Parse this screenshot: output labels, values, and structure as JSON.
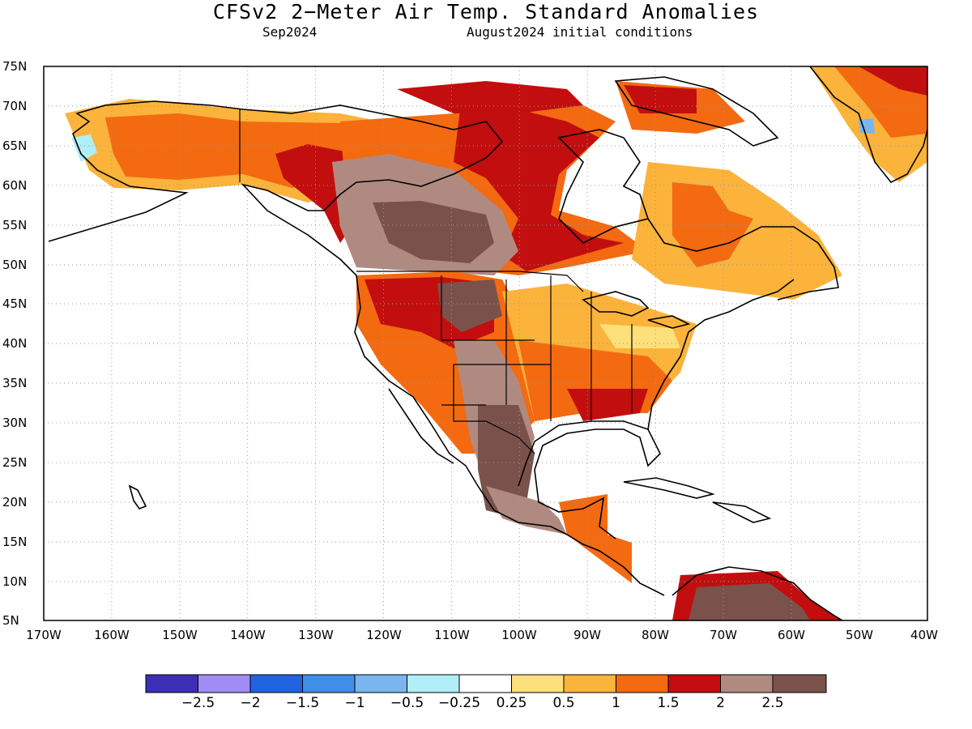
{
  "title": "CFSv2 2−Meter Air Temp. Standard Anomalies",
  "subtitle_left": "Sep2024",
  "subtitle_right": "August2024 initial conditions",
  "map": {
    "lon_range": [
      -170,
      -40
    ],
    "lat_range": [
      5,
      75
    ],
    "lon_labels": [
      "170W",
      "160W",
      "150W",
      "140W",
      "130W",
      "120W",
      "110W",
      "100W",
      "90W",
      "80W",
      "70W",
      "60W",
      "50W",
      "40W"
    ],
    "lat_labels": [
      "5N",
      "10N",
      "15N",
      "20N",
      "25N",
      "30N",
      "35N",
      "40N",
      "45N",
      "50N",
      "55N",
      "60N",
      "65N",
      "70N",
      "75N"
    ],
    "gridlines": "dotted"
  },
  "colorbar": {
    "colors": [
      "#3c2fb5",
      "#a18cf5",
      "#1f63e0",
      "#3f8fe8",
      "#79b6f0",
      "#b0eef8",
      "#ffffff",
      "#fde07b",
      "#fbb33b",
      "#f36a11",
      "#c20e0e",
      "#b08a80",
      "#7a524b"
    ],
    "labels": [
      "−2.5",
      "−2",
      "−1.5",
      "−1",
      "−0.5",
      "−0.25",
      "0.25",
      "0.5",
      "1",
      "1.5",
      "2",
      "2.5"
    ]
  }
}
